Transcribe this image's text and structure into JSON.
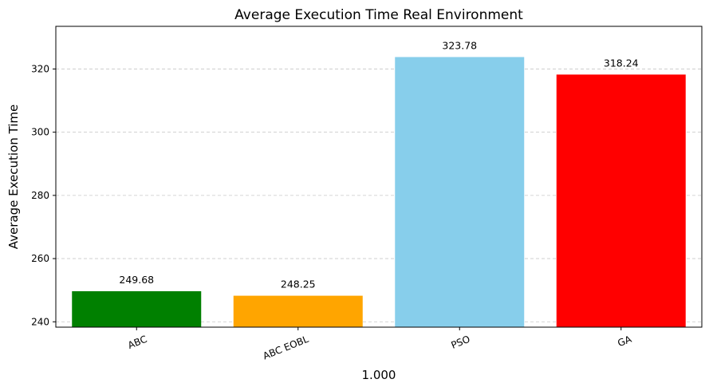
{
  "chart_data": {
    "type": "bar",
    "title": "Average Execution Time Real Environment",
    "xlabel": "1.000",
    "ylabel": "Average Execution Time",
    "categories": [
      "ABC",
      "ABC EOBL",
      "PSO",
      "GA"
    ],
    "values": [
      249.68,
      248.25,
      323.78,
      318.24
    ],
    "value_labels": [
      "249.68",
      "248.25",
      "323.78",
      "318.24"
    ],
    "colors": [
      "#008000",
      "#ffa500",
      "#87ceeb",
      "#ff0000"
    ],
    "ylim": [
      238.3,
      333.5
    ],
    "yticks": [
      240,
      260,
      280,
      300,
      320
    ],
    "grid": "y-dashed",
    "xtick_rotation": "slanted"
  }
}
